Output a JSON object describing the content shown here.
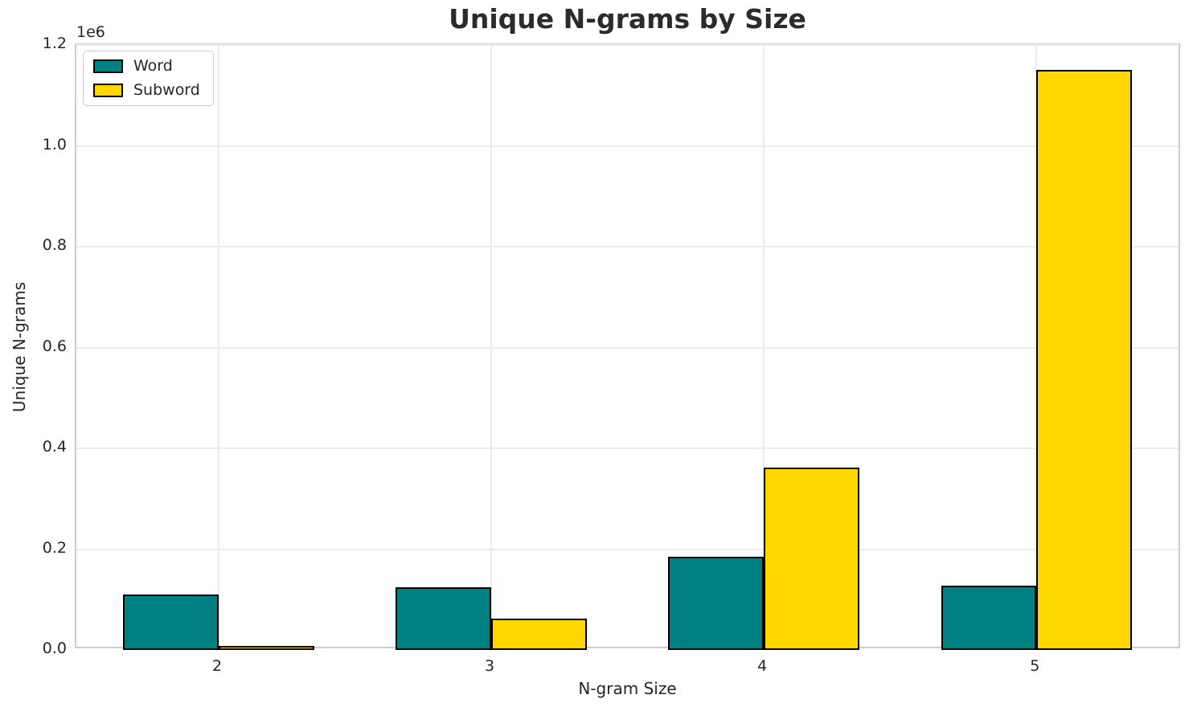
{
  "chart_data": {
    "type": "bar",
    "title": "Unique N-grams by Size",
    "xlabel": "N-gram Size",
    "ylabel": "Unique N-grams",
    "offset_text": "1e6",
    "categories": [
      "2",
      "3",
      "4",
      "5"
    ],
    "x_positions": [
      2,
      3,
      4,
      5
    ],
    "series": [
      {
        "name": "Word",
        "color": "#008080",
        "values": [
          110000,
          125000,
          185000,
          128000
        ]
      },
      {
        "name": "Subword",
        "color": "#FFD700",
        "values": [
          8000,
          62000,
          362000,
          1150000
        ]
      }
    ],
    "bar_edge_color": "#000000",
    "bar_width_data_units": 0.35,
    "ylim": [
      0,
      1200000
    ],
    "xlim": [
      1.478,
      5.533
    ],
    "yticks": [
      0.0,
      0.2,
      0.4,
      0.6,
      0.8,
      1.0,
      1.2
    ],
    "ytick_labels": [
      "0.0",
      "0.2",
      "0.4",
      "0.6",
      "0.8",
      "1.0",
      "1.2"
    ],
    "grid": true,
    "legend_position": "upper left"
  }
}
